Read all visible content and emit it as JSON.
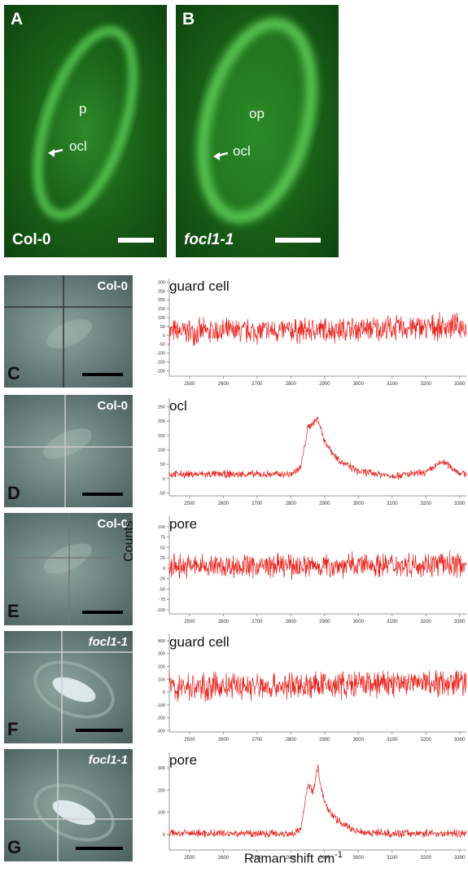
{
  "panels": {
    "A": {
      "letter": "A",
      "genotype": "Col-0",
      "inner": [
        "p",
        "ocl"
      ]
    },
    "B": {
      "letter": "B",
      "genotype": "focl1-1",
      "inner": [
        "op",
        "ocl"
      ]
    }
  },
  "micrographs": [
    {
      "letter": "C",
      "genotype": "Col-0"
    },
    {
      "letter": "D",
      "genotype": "Col-0"
    },
    {
      "letter": "E",
      "genotype": "Col-0"
    },
    {
      "letter": "F",
      "genotype": "focl1-1"
    },
    {
      "letter": "G",
      "genotype": "focl1-1"
    }
  ],
  "axis": {
    "ylabel": "Counts",
    "xlabel": "Raman shift cm",
    "xlabel_sup": "-1"
  },
  "colors": {
    "spectrum": "#e8201a",
    "fluorescence": "#2e8a2a"
  },
  "chart_data": [
    {
      "type": "line",
      "name": "guard cell",
      "genotype": "Col-0",
      "x_range": [
        2440,
        3320
      ],
      "xticks": [
        2500,
        2600,
        2700,
        2800,
        2900,
        3000,
        3100,
        3200,
        3300
      ],
      "ylim": [
        -230,
        320
      ],
      "yticks": [
        300,
        250,
        200,
        150,
        100,
        50,
        0,
        -50,
        -100,
        -150,
        -200
      ],
      "series": [
        {
          "x": [
            2440,
            2600,
            2800,
            2900,
            3000,
            3100,
            3200,
            3300,
            3320
          ],
          "y": [
            20,
            20,
            25,
            30,
            35,
            40,
            45,
            50,
            50
          ]
        }
      ],
      "noise_amp": 85,
      "peaks": []
    },
    {
      "type": "line",
      "name": "ocl",
      "genotype": "Col-0",
      "x_range": [
        2440,
        3320
      ],
      "xticks": [
        2500,
        2600,
        2700,
        2800,
        2900,
        3000,
        3100,
        3200,
        3300
      ],
      "ylim": [
        -60,
        280
      ],
      "yticks": [
        250,
        200,
        150,
        100,
        50,
        0,
        -50
      ],
      "series": [
        {
          "x": [
            2440,
            2600,
            2700,
            2800,
            2830,
            2850,
            2880,
            2900,
            2930,
            2960,
            3000,
            3100,
            3200,
            3250,
            3300,
            3320
          ],
          "y": [
            15,
            15,
            15,
            15,
            40,
            175,
            210,
            130,
            80,
            50,
            25,
            10,
            20,
            60,
            20,
            15
          ]
        }
      ],
      "noise_amp": 16,
      "peaks": []
    },
    {
      "type": "line",
      "name": "pore",
      "genotype": "Col-0",
      "x_range": [
        2440,
        3320
      ],
      "xticks": [
        2500,
        2600,
        2700,
        2800,
        2900,
        3000,
        3100,
        3200,
        3300
      ],
      "ylim": [
        -110,
        125
      ],
      "yticks": [
        100,
        75,
        50,
        25,
        0,
        -25,
        -50,
        -75,
        -100
      ],
      "series": [
        {
          "x": [
            2440,
            2800,
            3000,
            3320
          ],
          "y": [
            5,
            5,
            8,
            10
          ]
        }
      ],
      "noise_amp": 35,
      "peaks": []
    },
    {
      "type": "line",
      "name": "guard cell",
      "genotype": "focl1-1",
      "x_range": [
        2440,
        3320
      ],
      "xticks": [
        2500,
        2600,
        2700,
        2800,
        2900,
        3000,
        3100,
        3200,
        3300
      ],
      "ylim": [
        -310,
        450
      ],
      "yticks": [
        400,
        300,
        200,
        100,
        0,
        -100,
        -200,
        -300
      ],
      "series": [
        {
          "x": [
            2440,
            2800,
            3000,
            3320
          ],
          "y": [
            40,
            45,
            60,
            80
          ]
        }
      ],
      "noise_amp": 130,
      "peaks": []
    },
    {
      "type": "line",
      "name": "pore",
      "genotype": "focl1-1",
      "x_range": [
        2440,
        3320
      ],
      "xticks": [
        2500,
        2600,
        2700,
        2800,
        2900,
        3000,
        3100,
        3200,
        3300
      ],
      "ylim": [
        -70,
        370
      ],
      "yticks": [
        300,
        200,
        100,
        0
      ],
      "series": [
        {
          "x": [
            2440,
            2800,
            2830,
            2850,
            2865,
            2880,
            2890,
            2910,
            2940,
            2980,
            3020,
            3100,
            3320
          ],
          "y": [
            5,
            5,
            20,
            230,
            190,
            310,
            200,
            110,
            60,
            25,
            10,
            5,
            5
          ]
        }
      ],
      "noise_amp": 22,
      "peaks": []
    }
  ]
}
